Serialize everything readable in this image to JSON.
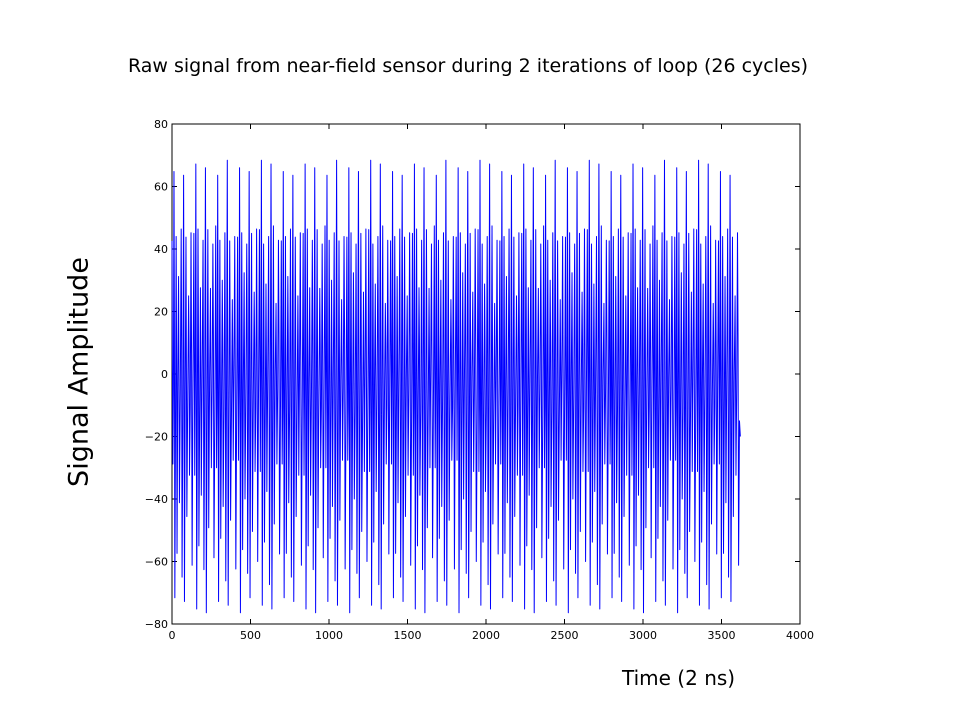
{
  "chart_data": {
    "type": "line",
    "title": "Raw signal from near-field sensor during 2 iterations of loop (26 cycles)",
    "xlabel": "Time (2 ns)",
    "ylabel": "Signal Amplitude",
    "xlim": [
      0,
      4000
    ],
    "ylim": [
      -80,
      80
    ],
    "xticks": [
      0,
      500,
      1000,
      1500,
      2000,
      2500,
      3000,
      3500,
      4000
    ],
    "yticks": [
      -80,
      -60,
      -40,
      -20,
      0,
      20,
      40,
      60,
      80
    ],
    "grid": false,
    "series": [
      {
        "color": "#0000ff",
        "x_range": [
          0,
          3620
        ],
        "cycles": 26,
        "approx_peak_max": 69,
        "approx_peak_min": -77,
        "peaks_per_cycle": [
          {
            "t": 0.0,
            "v": 45
          },
          {
            "t": 0.04,
            "v": -30
          },
          {
            "t": 0.09,
            "v": 66
          },
          {
            "t": 0.13,
            "v": -74
          },
          {
            "t": 0.19,
            "v": 44
          },
          {
            "t": 0.23,
            "v": -55
          },
          {
            "t": 0.3,
            "v": 30
          },
          {
            "t": 0.34,
            "v": -40
          },
          {
            "t": 0.42,
            "v": 44
          },
          {
            "t": 0.46,
            "v": -65
          },
          {
            "t": 0.53,
            "v": 66
          },
          {
            "t": 0.57,
            "v": -74
          },
          {
            "t": 0.64,
            "v": 45
          },
          {
            "t": 0.68,
            "v": -48
          },
          {
            "t": 0.76,
            "v": 25
          },
          {
            "t": 0.8,
            "v": -30
          },
          {
            "t": 0.87,
            "v": 44
          },
          {
            "t": 0.92,
            "v": -60
          }
        ]
      }
    ]
  }
}
